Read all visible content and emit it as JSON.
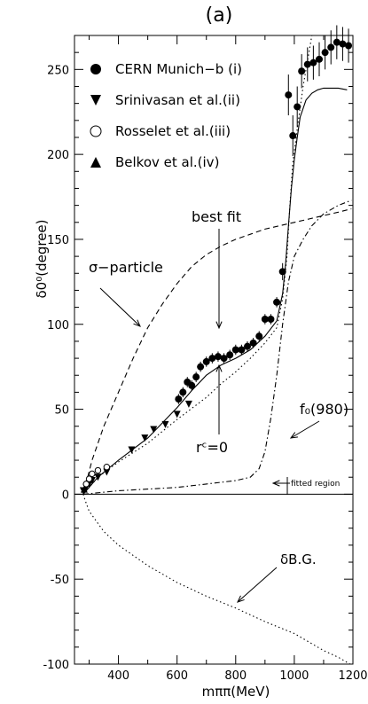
{
  "chart_data": {
    "type": "line",
    "panel_label": "(a)",
    "xlabel": "mππ(MeV)",
    "ylabel": "δ0⁰(degree)",
    "xlim": [
      250,
      1200
    ],
    "ylim": [
      -100,
      270
    ],
    "x_ticks": [
      400,
      600,
      800,
      1000,
      1200
    ],
    "y_ticks": [
      -100,
      -50,
      0,
      50,
      100,
      150,
      200,
      250
    ],
    "legend_position": "top-left",
    "legend": [
      {
        "label": "CERN Munich−b (i)",
        "marker": "filled-circle"
      },
      {
        "label": "Srinivasan et al.(ii)",
        "marker": "filled-down-triangle"
      },
      {
        "label": "Rosselet et al.(iii)",
        "marker": "open-circle"
      },
      {
        "label": "Belkov et al.(iv)",
        "marker": "filled-up-triangle"
      }
    ],
    "annotations": {
      "best_fit": "best fit",
      "sigma_particle": "σ−particle",
      "f0": "f₀(980)",
      "rc0": "rᶜ=0",
      "fitted_region": "fitted region",
      "delta_bg": "δB.G."
    },
    "series": [
      {
        "marker": "filled-circle",
        "points": [
          [
            605,
            56
          ],
          [
            620,
            60
          ],
          [
            635,
            66
          ],
          [
            650,
            64
          ],
          [
            665,
            69
          ],
          [
            680,
            75
          ],
          [
            700,
            78
          ],
          [
            720,
            80
          ],
          [
            740,
            81
          ],
          [
            760,
            80
          ],
          [
            780,
            82
          ],
          [
            800,
            85
          ],
          [
            820,
            85
          ],
          [
            840,
            87
          ],
          [
            860,
            89
          ],
          [
            880,
            93
          ],
          [
            900,
            103
          ],
          [
            920,
            103
          ],
          [
            940,
            113
          ],
          [
            960,
            131
          ],
          [
            980,
            235
          ],
          [
            995,
            211
          ],
          [
            1010,
            228
          ],
          [
            1025,
            249
          ],
          [
            1045,
            253
          ],
          [
            1065,
            254
          ],
          [
            1085,
            256
          ],
          [
            1105,
            260
          ],
          [
            1125,
            263
          ],
          [
            1145,
            266
          ],
          [
            1165,
            265
          ],
          [
            1185,
            264
          ]
        ],
        "yerr": [
          3,
          3,
          3,
          3,
          3,
          3,
          3,
          3,
          3,
          3,
          3,
          3,
          3,
          3,
          3,
          3,
          3,
          3,
          3,
          5,
          12,
          12,
          12,
          10,
          10,
          10,
          10,
          10,
          10,
          10,
          10,
          10
        ]
      },
      {
        "marker": "filled-down-triangle",
        "points": [
          [
            280,
            2
          ],
          [
            290,
            4
          ],
          [
            300,
            6
          ],
          [
            310,
            8
          ],
          [
            330,
            10
          ],
          [
            360,
            13
          ],
          [
            445,
            26
          ],
          [
            490,
            33
          ],
          [
            520,
            38
          ],
          [
            560,
            41
          ],
          [
            600,
            47
          ],
          [
            640,
            53
          ]
        ]
      },
      {
        "marker": "open-circle",
        "points": [
          [
            290,
            6
          ],
          [
            300,
            9
          ],
          [
            310,
            12
          ],
          [
            330,
            14
          ],
          [
            360,
            16
          ]
        ]
      },
      {
        "marker": "filled-up-triangle",
        "points": [
          [
            283,
            3
          ]
        ]
      },
      {
        "style": "solid",
        "points": [
          [
            280,
            0
          ],
          [
            330,
            10
          ],
          [
            400,
            20
          ],
          [
            500,
            33
          ],
          [
            600,
            51
          ],
          [
            650,
            61
          ],
          [
            700,
            70
          ],
          [
            750,
            76
          ],
          [
            800,
            80
          ],
          [
            850,
            85
          ],
          [
            900,
            93
          ],
          [
            940,
            102
          ],
          [
            960,
            118
          ],
          [
            970,
            135
          ],
          [
            980,
            158
          ],
          [
            990,
            180
          ],
          [
            1000,
            197
          ],
          [
            1010,
            210
          ],
          [
            1020,
            222
          ],
          [
            1040,
            232
          ],
          [
            1060,
            236
          ],
          [
            1080,
            238
          ],
          [
            1100,
            239
          ],
          [
            1150,
            239
          ],
          [
            1180,
            238
          ]
        ]
      },
      {
        "style": "dotted",
        "points": [
          [
            280,
            0
          ],
          [
            330,
            10
          ],
          [
            400,
            19
          ],
          [
            500,
            30
          ],
          [
            600,
            44
          ],
          [
            700,
            57
          ],
          [
            750,
            65
          ],
          [
            800,
            72
          ],
          [
            850,
            80
          ],
          [
            900,
            89
          ],
          [
            940,
            98
          ],
          [
            960,
            115
          ],
          [
            975,
            140
          ],
          [
            985,
            170
          ],
          [
            995,
            195
          ],
          [
            1010,
            215
          ],
          [
            1030,
            240
          ],
          [
            1050,
            260
          ],
          [
            1060,
            270
          ]
        ]
      },
      {
        "style": "dashed",
        "points": [
          [
            280,
            0
          ],
          [
            310,
            20
          ],
          [
            350,
            40
          ],
          [
            400,
            60
          ],
          [
            450,
            80
          ],
          [
            500,
            98
          ],
          [
            550,
            112
          ],
          [
            600,
            124
          ],
          [
            650,
            134
          ],
          [
            700,
            141
          ],
          [
            750,
            146
          ],
          [
            800,
            150
          ],
          [
            850,
            153
          ],
          [
            900,
            156
          ],
          [
            950,
            158
          ],
          [
            1000,
            160
          ],
          [
            1050,
            162
          ],
          [
            1100,
            164
          ],
          [
            1150,
            166
          ],
          [
            1195,
            168
          ]
        ]
      },
      {
        "style": "dash-dot",
        "points": [
          [
            280,
            0
          ],
          [
            400,
            2
          ],
          [
            500,
            3
          ],
          [
            600,
            4
          ],
          [
            700,
            6
          ],
          [
            800,
            8
          ],
          [
            850,
            10
          ],
          [
            880,
            15
          ],
          [
            900,
            25
          ],
          [
            920,
            45
          ],
          [
            940,
            70
          ],
          [
            960,
            100
          ],
          [
            980,
            125
          ],
          [
            1000,
            140
          ],
          [
            1030,
            150
          ],
          [
            1060,
            158
          ],
          [
            1100,
            165
          ],
          [
            1150,
            170
          ],
          [
            1195,
            173
          ]
        ]
      },
      {
        "style": "dotted-bg",
        "points": [
          [
            280,
            0
          ],
          [
            285,
            -3
          ],
          [
            300,
            -10
          ],
          [
            350,
            -22
          ],
          [
            400,
            -30
          ],
          [
            500,
            -42
          ],
          [
            600,
            -52
          ],
          [
            700,
            -60
          ],
          [
            800,
            -67
          ],
          [
            900,
            -75
          ],
          [
            1000,
            -82
          ],
          [
            1100,
            -92
          ],
          [
            1150,
            -96
          ],
          [
            1190,
            -100
          ]
        ]
      }
    ]
  }
}
